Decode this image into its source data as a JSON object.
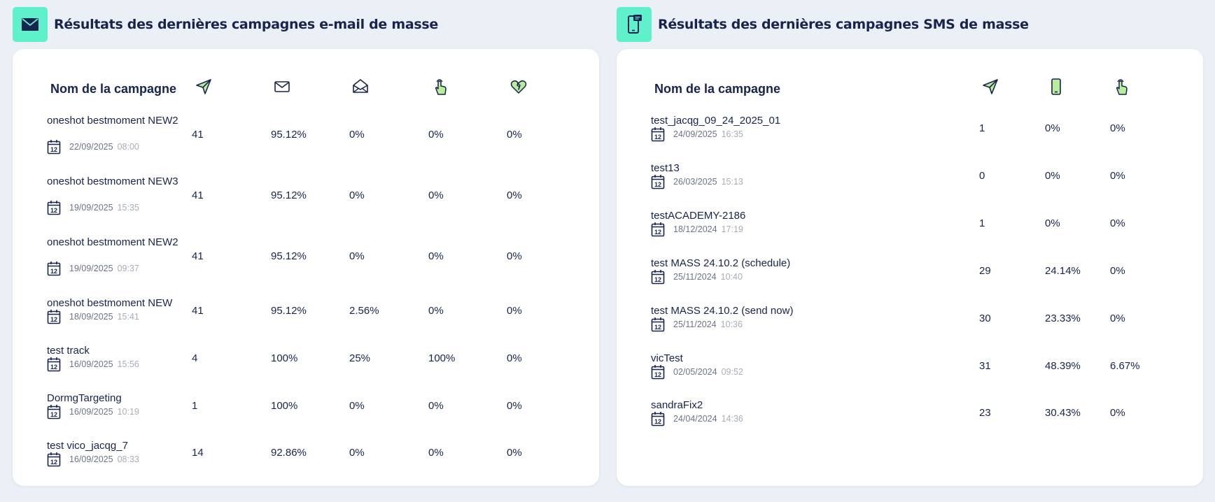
{
  "email": {
    "title": "Résultats des dernières campagnes e-mail de masse",
    "icon": "envelope-icon",
    "column_name": "Nom de la campagne",
    "column_icons": [
      "send-icon",
      "envelope-icon",
      "envelope-open-icon",
      "click-hand-icon",
      "heart-broken-icon"
    ],
    "rows": [
      {
        "name": " oneshot bestmoment NEW2",
        "date": "22/09/2025",
        "time": "08:00",
        "sent": "41",
        "delivered": "95.12%",
        "opened": "0%",
        "clicked": "0%",
        "unsub": "0%"
      },
      {
        "name": " oneshot bestmoment NEW3",
        "date": "19/09/2025",
        "time": "15:35",
        "sent": "41",
        "delivered": "95.12%",
        "opened": "0%",
        "clicked": "0%",
        "unsub": "0%"
      },
      {
        "name": "oneshot bestmoment NEW2",
        "date": "19/09/2025",
        "time": "09:37",
        "sent": "41",
        "delivered": "95.12%",
        "opened": "0%",
        "clicked": "0%",
        "unsub": "0%"
      },
      {
        "name": "oneshot bestmoment NEW",
        "date": "18/09/2025",
        "time": "15:41",
        "sent": "41",
        "delivered": "95.12%",
        "opened": "2.56%",
        "clicked": "0%",
        "unsub": "0%"
      },
      {
        "name": "test track",
        "date": "16/09/2025",
        "time": "15:56",
        "sent": "4",
        "delivered": "100%",
        "opened": "25%",
        "clicked": "100%",
        "unsub": "0%"
      },
      {
        "name": "DormgTargeting",
        "date": "16/09/2025",
        "time": "10:19",
        "sent": "1",
        "delivered": "100%",
        "opened": "0%",
        "clicked": "0%",
        "unsub": "0%"
      },
      {
        "name": "test vico_jacqg_7",
        "date": "16/09/2025",
        "time": "08:33",
        "sent": "14",
        "delivered": "92.86%",
        "opened": "0%",
        "clicked": "0%",
        "unsub": "0%"
      }
    ]
  },
  "sms": {
    "title": "Résultats des dernières campagnes SMS de masse",
    "icon": "phone-message-icon",
    "column_name": "Nom de la campagne",
    "column_icons": [
      "send-icon",
      "mobile-phone-icon",
      "click-hand-icon"
    ],
    "rows": [
      {
        "name": "test_jacqg_09_24_2025_01",
        "date": "24/09/2025",
        "time": "16:35",
        "sent": "1",
        "delivered": "0%",
        "clicked": "0%"
      },
      {
        "name": "test13",
        "date": "26/03/2025",
        "time": "15:13",
        "sent": "0",
        "delivered": "0%",
        "clicked": "0%"
      },
      {
        "name": "testACADEMY-2186",
        "date": "18/12/2024",
        "time": "17:19",
        "sent": "1",
        "delivered": "0%",
        "clicked": "0%"
      },
      {
        "name": "test MASS 24.10.2 (schedule)",
        "date": "25/11/2024",
        "time": "10:40",
        "sent": "29",
        "delivered": "24.14%",
        "clicked": "0%"
      },
      {
        "name": "test MASS 24.10.2 (send now)",
        "date": "25/11/2024",
        "time": "10:36",
        "sent": "30",
        "delivered": "23.33%",
        "clicked": "0%"
      },
      {
        "name": "vicTest",
        "date": "02/05/2024",
        "time": "09:52",
        "sent": "31",
        "delivered": "48.39%",
        "clicked": "6.67%"
      },
      {
        "name": "sandraFix2",
        "date": "24/04/2024",
        "time": "14:36",
        "sent": "23",
        "delivered": "30.43%",
        "clicked": "0%"
      }
    ]
  },
  "colors": {
    "accent": "#5ff0cc",
    "text": "#16244f",
    "background": "#ebf0f6",
    "icon_fill": "#b8ee9a"
  },
  "calendar_day": "12"
}
